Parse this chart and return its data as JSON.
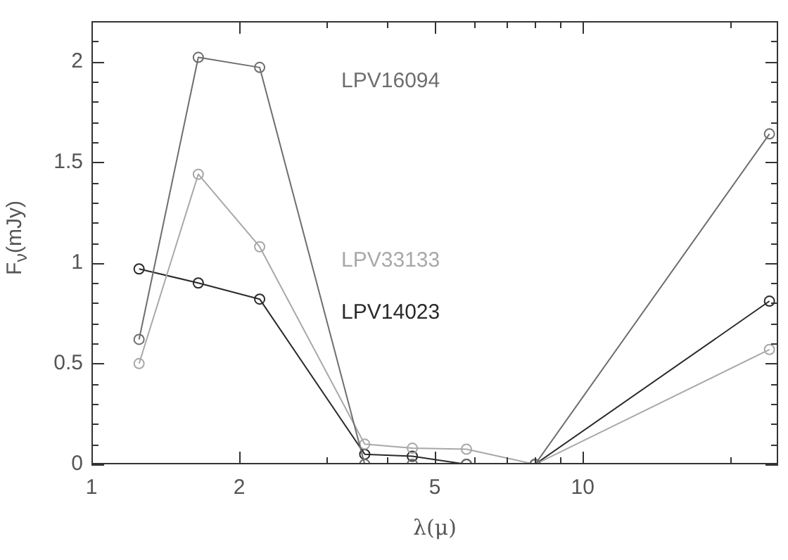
{
  "chart_data": {
    "type": "line",
    "xlabel": "λ(μ)",
    "ylabel": "F$_{ν}$(mJy)",
    "log": "x",
    "grid": false,
    "legend": false,
    "marker": "circle",
    "line_style": "solid",
    "xlim": [
      1,
      25
    ],
    "ylim": [
      0,
      2.2
    ],
    "xticks": [
      1,
      2,
      {
        "value": 3,
        "label": null
      },
      {
        "value": 4,
        "label": null
      },
      5,
      {
        "value": 6,
        "label": null
      },
      {
        "value": 7,
        "label": null
      },
      {
        "value": 8,
        "label": null
      },
      {
        "value": 9,
        "label": null
      },
      10,
      {
        "value": 20,
        "label": null
      }
    ],
    "yticks": [
      0,
      {
        "value": 0.1,
        "label": null
      },
      {
        "value": 0.2,
        "label": null
      },
      {
        "value": 0.3,
        "label": null
      },
      {
        "value": 0.4,
        "label": null
      },
      0.5,
      {
        "value": 0.6,
        "label": null
      },
      {
        "value": 0.7,
        "label": null
      },
      {
        "value": 0.8,
        "label": null
      },
      {
        "value": 0.9,
        "label": null
      },
      1,
      {
        "value": 1.1,
        "label": null
      },
      {
        "value": 1.2,
        "label": null
      },
      {
        "value": 1.3,
        "label": null
      },
      {
        "value": 1.4,
        "label": null
      },
      1.5,
      {
        "value": 1.6,
        "label": null
      },
      {
        "value": 1.7,
        "label": null
      },
      {
        "value": 1.8,
        "label": null
      },
      {
        "value": 1.9,
        "label": null
      },
      2,
      {
        "value": 2.1,
        "label": null
      }
    ],
    "x": [
      1.25,
      1.65,
      2.2,
      3.6,
      4.5,
      5.8,
      8.0,
      24
    ],
    "series": [
      {
        "name": "LPV16094",
        "color": "#6e6e6e",
        "values": [
          0.62,
          2.02,
          1.97,
          0.0,
          0.0,
          0.0,
          0.0,
          1.64
        ]
      },
      {
        "name": "LPV33133",
        "color": "#a8a8a8",
        "values": [
          0.5,
          1.44,
          1.08,
          0.1,
          0.08,
          0.075,
          0.0,
          0.57
        ]
      },
      {
        "name": "LPV14023",
        "color": "#2a2a2a",
        "values": [
          0.97,
          0.9,
          0.82,
          0.05,
          0.04,
          0.0,
          0.0,
          0.81
        ]
      }
    ]
  }
}
